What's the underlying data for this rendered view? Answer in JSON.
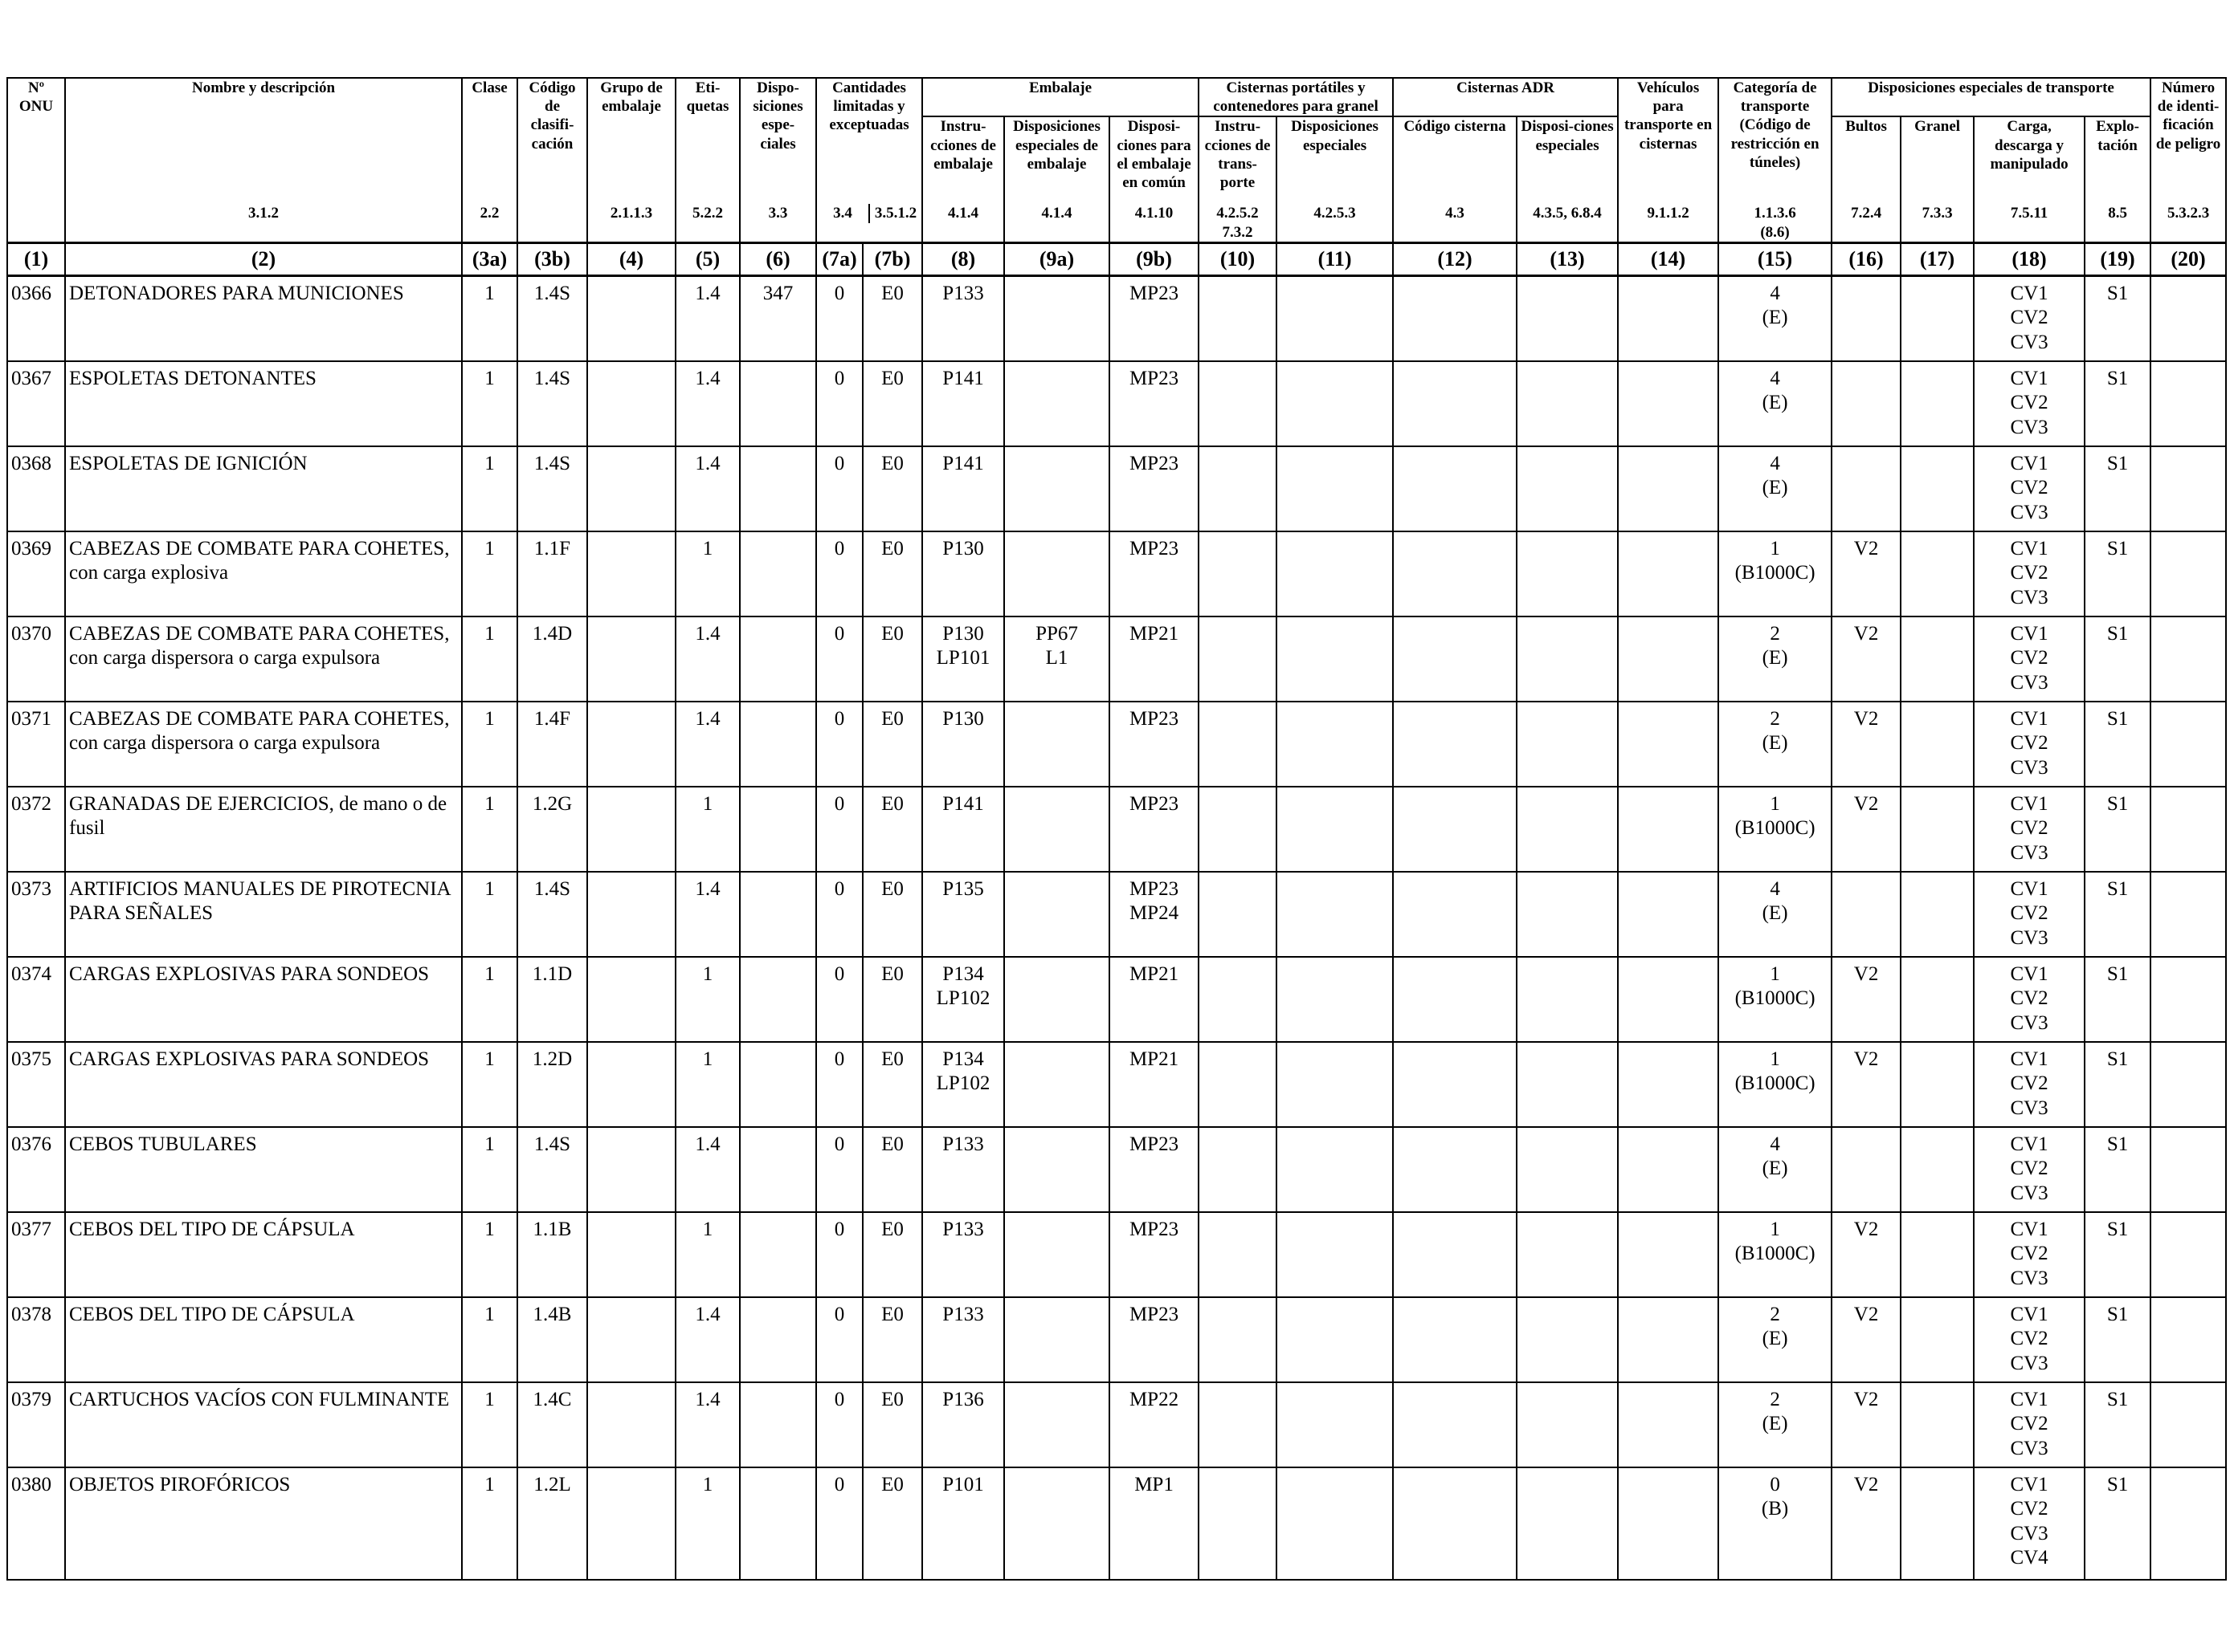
{
  "headers": {
    "un_no": "Nº ONU",
    "name": "Nombre y descripción",
    "class": "Clase",
    "classification_code": "Código de clasifi-cación",
    "packing_group": "Grupo de embalaje",
    "labels": "Eti-quetas",
    "special_provisions": "Dispo-siciones espe-ciales",
    "limited_quantities": "Cantidades limitadas y exceptuadas",
    "packaging": "Embalaje",
    "packing_instructions": "Instru-cciones de embalaje",
    "special_packing_provisions": "Disposiciones especiales de embalaje",
    "mixed_packing": "Disposi-ciones para el embalaje en común",
    "portable_tanks": "Cisternas portátiles y contenedores para granel",
    "pt_instructions": "Instru-cciones de trans-porte",
    "pt_special": "Disposiciones especiales",
    "adr_tanks": "Cisternas ADR",
    "tank_code": "Código cisterna",
    "tank_special": "Disposi-ciones especiales",
    "vehicles": "Vehículos para transporte en cisternas",
    "transport_category": "Categoría de transporte (Código de restricción en túneles)",
    "special_transport": "Disposiciones especiales de transporte",
    "packages": "Bultos",
    "bulk": "Granel",
    "loading": "Carga, descarga y manipulado",
    "operation": "Explo-tación",
    "hazard_id": "Número de identi-ficación de peligro"
  },
  "refs": {
    "name": "3.1.2",
    "class": "2.2",
    "packing_group": "2.1.1.3",
    "labels": "5.2.2",
    "special_provisions": "3.3",
    "lq": "3.4",
    "eq": "3.5.1.2",
    "packing_instructions": "4.1.4",
    "special_packing_provisions": "4.1.4",
    "mixed_packing": "4.1.10",
    "pt_instructions": "4.2.5.2\n7.3.2",
    "pt_special": "4.2.5.3",
    "tank_code": "4.3",
    "tank_special": "4.3.5, 6.8.4",
    "vehicles": "9.1.1.2",
    "transport_category": "1.1.3.6\n(8.6)",
    "packages": "7.2.4",
    "bulk": "7.3.3",
    "loading": "7.5.11",
    "operation": "8.5",
    "hazard_id": "5.3.2.3"
  },
  "column_numbers": [
    "(1)",
    "(2)",
    "(3a)",
    "(3b)",
    "(4)",
    "(5)",
    "(6)",
    "(7a)",
    "(7b)",
    "(8)",
    "(9a)",
    "(9b)",
    "(10)",
    "(11)",
    "(12)",
    "(13)",
    "(14)",
    "(15)",
    "(16)",
    "(17)",
    "(18)",
    "(19)",
    "(20)"
  ],
  "rows": [
    {
      "un": "0366",
      "name": "DETONADORES PARA MUNICIONES",
      "cls": "1",
      "code": "1.4S",
      "pg": "",
      "labels": "1.4",
      "sp": "347",
      "lq": "0",
      "eq": "E0",
      "pi": "P133",
      "spp": "",
      "mp": "MP23",
      "pt": "",
      "pts": "",
      "tc": "",
      "ts": "",
      "veh": "",
      "cat": "4\n(E)",
      "pkg": "",
      "bulk": "",
      "load": "CV1\nCV2\nCV3",
      "op": "S1",
      "hz": ""
    },
    {
      "un": "0367",
      "name": "ESPOLETAS DETONANTES",
      "cls": "1",
      "code": "1.4S",
      "pg": "",
      "labels": "1.4",
      "sp": "",
      "lq": "0",
      "eq": "E0",
      "pi": "P141",
      "spp": "",
      "mp": "MP23",
      "pt": "",
      "pts": "",
      "tc": "",
      "ts": "",
      "veh": "",
      "cat": "4\n(E)",
      "pkg": "",
      "bulk": "",
      "load": "CV1\nCV2\nCV3",
      "op": "S1",
      "hz": ""
    },
    {
      "un": "0368",
      "name": "ESPOLETAS DE IGNICIÓN",
      "cls": "1",
      "code": "1.4S",
      "pg": "",
      "labels": "1.4",
      "sp": "",
      "lq": "0",
      "eq": "E0",
      "pi": "P141",
      "spp": "",
      "mp": "MP23",
      "pt": "",
      "pts": "",
      "tc": "",
      "ts": "",
      "veh": "",
      "cat": "4\n(E)",
      "pkg": "",
      "bulk": "",
      "load": "CV1\nCV2\nCV3",
      "op": "S1",
      "hz": ""
    },
    {
      "un": "0369",
      "name": "CABEZAS DE COMBATE PARA COHETES, con carga explosiva",
      "cls": "1",
      "code": "1.1F",
      "pg": "",
      "labels": "1",
      "sp": "",
      "lq": "0",
      "eq": "E0",
      "pi": "P130",
      "spp": "",
      "mp": "MP23",
      "pt": "",
      "pts": "",
      "tc": "",
      "ts": "",
      "veh": "",
      "cat": "1\n(B1000C)",
      "pkg": "V2",
      "bulk": "",
      "load": "CV1\nCV2\nCV3",
      "op": "S1",
      "hz": ""
    },
    {
      "un": "0370",
      "name": "CABEZAS DE COMBATE PARA COHETES, con carga dispersora o carga expulsora",
      "cls": "1",
      "code": "1.4D",
      "pg": "",
      "labels": "1.4",
      "sp": "",
      "lq": "0",
      "eq": "E0",
      "pi": "P130\nLP101",
      "spp": "PP67\nL1",
      "mp": "MP21",
      "pt": "",
      "pts": "",
      "tc": "",
      "ts": "",
      "veh": "",
      "cat": "2\n(E)",
      "pkg": "V2",
      "bulk": "",
      "load": "CV1\nCV2\nCV3",
      "op": "S1",
      "hz": ""
    },
    {
      "un": "0371",
      "name": "CABEZAS DE COMBATE PARA COHETES, con carga dispersora o carga expulsora",
      "cls": "1",
      "code": "1.4F",
      "pg": "",
      "labels": "1.4",
      "sp": "",
      "lq": "0",
      "eq": "E0",
      "pi": "P130",
      "spp": "",
      "mp": "MP23",
      "pt": "",
      "pts": "",
      "tc": "",
      "ts": "",
      "veh": "",
      "cat": "2\n(E)",
      "pkg": "V2",
      "bulk": "",
      "load": "CV1\nCV2\nCV3",
      "op": "S1",
      "hz": ""
    },
    {
      "un": "0372",
      "name": "GRANADAS DE EJERCICIOS, de mano o de fusil",
      "cls": "1",
      "code": "1.2G",
      "pg": "",
      "labels": "1",
      "sp": "",
      "lq": "0",
      "eq": "E0",
      "pi": "P141",
      "spp": "",
      "mp": "MP23",
      "pt": "",
      "pts": "",
      "tc": "",
      "ts": "",
      "veh": "",
      "cat": "1\n(B1000C)",
      "pkg": "V2",
      "bulk": "",
      "load": "CV1\nCV2\nCV3",
      "op": "S1",
      "hz": ""
    },
    {
      "un": "0373",
      "name": "ARTIFICIOS MANUALES DE PIROTECNIA PARA SEÑALES",
      "cls": "1",
      "code": "1.4S",
      "pg": "",
      "labels": "1.4",
      "sp": "",
      "lq": "0",
      "eq": "E0",
      "pi": "P135",
      "spp": "",
      "mp": "MP23\nMP24",
      "pt": "",
      "pts": "",
      "tc": "",
      "ts": "",
      "veh": "",
      "cat": "4\n(E)",
      "pkg": "",
      "bulk": "",
      "load": "CV1\nCV2\nCV3",
      "op": "S1",
      "hz": ""
    },
    {
      "un": "0374",
      "name": "CARGAS EXPLOSIVAS PARA SONDEOS",
      "cls": "1",
      "code": "1.1D",
      "pg": "",
      "labels": "1",
      "sp": "",
      "lq": "0",
      "eq": "E0",
      "pi": "P134\nLP102",
      "spp": "",
      "mp": "MP21",
      "pt": "",
      "pts": "",
      "tc": "",
      "ts": "",
      "veh": "",
      "cat": "1\n(B1000C)",
      "pkg": "V2",
      "bulk": "",
      "load": "CV1\nCV2\nCV3",
      "op": "S1",
      "hz": ""
    },
    {
      "un": "0375",
      "name": "CARGAS EXPLOSIVAS PARA SONDEOS",
      "cls": "1",
      "code": "1.2D",
      "pg": "",
      "labels": "1",
      "sp": "",
      "lq": "0",
      "eq": "E0",
      "pi": "P134\nLP102",
      "spp": "",
      "mp": "MP21",
      "pt": "",
      "pts": "",
      "tc": "",
      "ts": "",
      "veh": "",
      "cat": "1\n(B1000C)",
      "pkg": "V2",
      "bulk": "",
      "load": "CV1\nCV2\nCV3",
      "op": "S1",
      "hz": ""
    },
    {
      "un": "0376",
      "name": "CEBOS TUBULARES",
      "cls": "1",
      "code": "1.4S",
      "pg": "",
      "labels": "1.4",
      "sp": "",
      "lq": "0",
      "eq": "E0",
      "pi": "P133",
      "spp": "",
      "mp": "MP23",
      "pt": "",
      "pts": "",
      "tc": "",
      "ts": "",
      "veh": "",
      "cat": "4\n(E)",
      "pkg": "",
      "bulk": "",
      "load": "CV1\nCV2\nCV3",
      "op": "S1",
      "hz": ""
    },
    {
      "un": "0377",
      "name": "CEBOS DEL TIPO DE CÁPSULA",
      "cls": "1",
      "code": "1.1B",
      "pg": "",
      "labels": "1",
      "sp": "",
      "lq": "0",
      "eq": "E0",
      "pi": "P133",
      "spp": "",
      "mp": "MP23",
      "pt": "",
      "pts": "",
      "tc": "",
      "ts": "",
      "veh": "",
      "cat": "1\n(B1000C)",
      "pkg": "V2",
      "bulk": "",
      "load": "CV1\nCV2\nCV3",
      "op": "S1",
      "hz": ""
    },
    {
      "un": "0378",
      "name": "CEBOS DEL TIPO DE CÁPSULA",
      "cls": "1",
      "code": "1.4B",
      "pg": "",
      "labels": "1.4",
      "sp": "",
      "lq": "0",
      "eq": "E0",
      "pi": "P133",
      "spp": "",
      "mp": "MP23",
      "pt": "",
      "pts": "",
      "tc": "",
      "ts": "",
      "veh": "",
      "cat": "2\n(E)",
      "pkg": "V2",
      "bulk": "",
      "load": "CV1\nCV2\nCV3",
      "op": "S1",
      "hz": ""
    },
    {
      "un": "0379",
      "name": "CARTUCHOS VACÍOS CON FULMINANTE",
      "cls": "1",
      "code": "1.4C",
      "pg": "",
      "labels": "1.4",
      "sp": "",
      "lq": "0",
      "eq": "E0",
      "pi": "P136",
      "spp": "",
      "mp": "MP22",
      "pt": "",
      "pts": "",
      "tc": "",
      "ts": "",
      "veh": "",
      "cat": "2\n(E)",
      "pkg": "V2",
      "bulk": "",
      "load": "CV1\nCV2\nCV3",
      "op": "S1",
      "hz": ""
    },
    {
      "un": "0380",
      "name": "OBJETOS PIROFÓRICOS",
      "cls": "1",
      "code": "1.2L",
      "pg": "",
      "labels": "1",
      "sp": "",
      "lq": "0",
      "eq": "E0",
      "pi": "P101",
      "spp": "",
      "mp": "MP1",
      "pt": "",
      "pts": "",
      "tc": "",
      "ts": "",
      "veh": "",
      "cat": "0\n(B)",
      "pkg": "V2",
      "bulk": "",
      "load": "CV1\nCV2\nCV3\nCV4",
      "op": "S1",
      "hz": ""
    }
  ]
}
